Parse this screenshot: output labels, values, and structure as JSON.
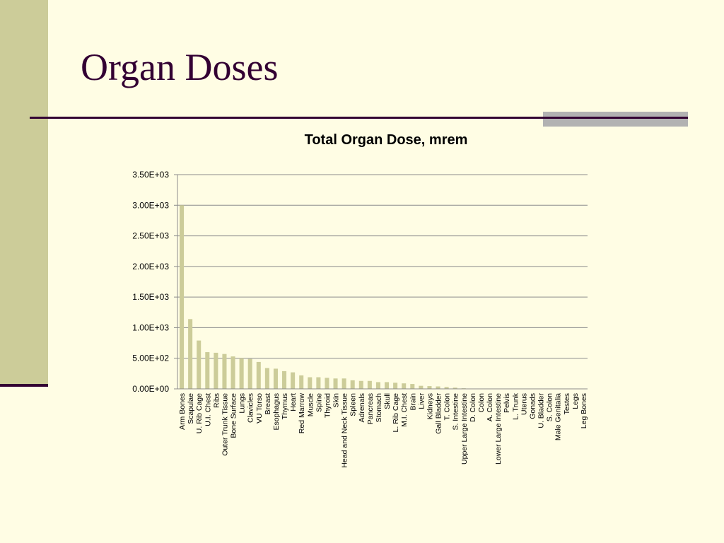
{
  "slide": {
    "title": "Organ Doses",
    "colors": {
      "background": "#FFFDE4",
      "side_band": "#CCCC99",
      "title_text": "#330033",
      "rule": "#330033",
      "accent_bar": "#B2B2B2"
    }
  },
  "chart_data": {
    "type": "bar",
    "title": "Total Organ Dose, mrem",
    "xlabel": "",
    "ylabel": "",
    "ylim": [
      0,
      3500
    ],
    "yticks": [
      {
        "value": 0,
        "label": "0.00E+00"
      },
      {
        "value": 500,
        "label": "5.00E+02"
      },
      {
        "value": 1000,
        "label": "1.00E+03"
      },
      {
        "value": 1500,
        "label": "1.50E+03"
      },
      {
        "value": 2000,
        "label": "2.00E+03"
      },
      {
        "value": 2500,
        "label": "2.50E+03"
      },
      {
        "value": 3000,
        "label": "3.00E+03"
      },
      {
        "value": 3500,
        "label": "3.50E+03"
      }
    ],
    "grid": true,
    "legend": "none",
    "bar_color": "#CCCC99",
    "categories": [
      "Arm Bones",
      "Scapulae",
      "U. Rib Cage",
      "U.I. Chest",
      "Ribs",
      "Outer Trunk Tissue",
      "Bone Surface",
      "Lungs",
      "Clavicles",
      "VU Torso",
      "Breast",
      "Esophagus",
      "Thymus",
      "Heart",
      "Red Marrow",
      "Muscle",
      "Spine",
      "Thyroid",
      "Skin",
      "Head and Neck Tissue",
      "Spleen",
      "Adrenals",
      "Pancreas",
      "Stomach",
      "Skull",
      "L. Rib Cage",
      "M.I. Chest",
      "Brain",
      "Liver",
      "Kidneys",
      "Gall Bladder",
      "T. Colon",
      "S. Intestine",
      "Upper Large Intestine",
      "D. Colon",
      "Colon",
      "A. Colon",
      "Lower Large Intestine",
      "Pelvis",
      "L. Trunk",
      "Uterus",
      "Gonads",
      "U. Bladder",
      "S. Colon",
      "Male Genitalia",
      "Testes",
      "Legs",
      "Leg Bones"
    ],
    "values": [
      3000,
      1140,
      790,
      600,
      590,
      570,
      530,
      500,
      490,
      440,
      340,
      330,
      290,
      270,
      220,
      190,
      190,
      180,
      170,
      170,
      140,
      130,
      130,
      110,
      110,
      100,
      90,
      80,
      50,
      45,
      40,
      30,
      20,
      10,
      5,
      5,
      5,
      5,
      5,
      5,
      4,
      4,
      3,
      3,
      3,
      3,
      2,
      2
    ]
  }
}
